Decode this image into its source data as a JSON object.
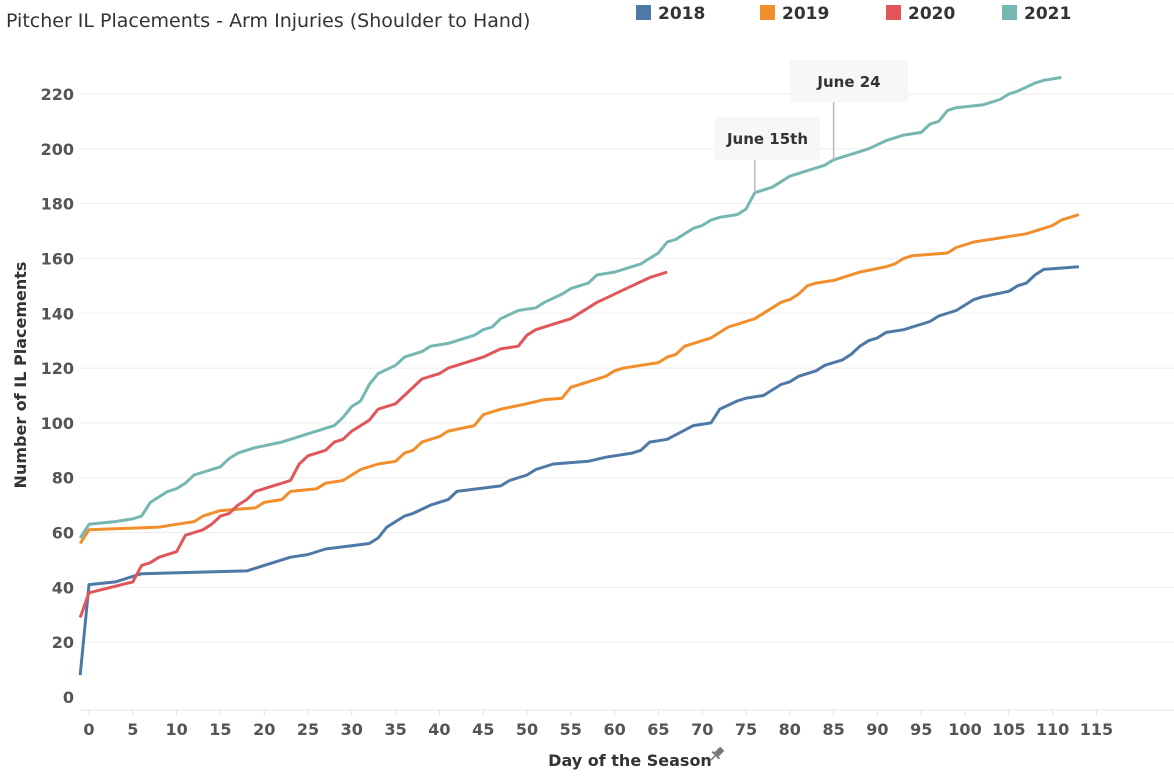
{
  "chart_data": {
    "type": "line",
    "title": "Pitcher IL Placements - Arm Injuries (Shoulder to Hand)",
    "xlabel": "Day of the Season",
    "ylabel": "Number of IL Placements",
    "xlim": [
      -1,
      124
    ],
    "ylim": [
      0,
      230
    ],
    "xticks": [
      0,
      5,
      10,
      15,
      20,
      25,
      30,
      35,
      40,
      45,
      50,
      55,
      60,
      65,
      70,
      75,
      80,
      85,
      90,
      95,
      100,
      105,
      110,
      115
    ],
    "yticks": [
      0,
      20,
      40,
      60,
      80,
      100,
      120,
      140,
      160,
      180,
      200,
      220
    ],
    "grid": "horizontal",
    "legend_position": "top",
    "series": [
      {
        "name": "2018",
        "color": "#4e79a7",
        "points": [
          [
            -1,
            8
          ],
          [
            0,
            41
          ],
          [
            3,
            42
          ],
          [
            5,
            44
          ],
          [
            6,
            45
          ],
          [
            18,
            46
          ],
          [
            23,
            51
          ],
          [
            25,
            52
          ],
          [
            27,
            54
          ],
          [
            32,
            56
          ],
          [
            33,
            58
          ],
          [
            34,
            62
          ],
          [
            36,
            66
          ],
          [
            37,
            67
          ],
          [
            39,
            70
          ],
          [
            41,
            72
          ],
          [
            42,
            75
          ],
          [
            47,
            77
          ],
          [
            48,
            79
          ],
          [
            50,
            81
          ],
          [
            51,
            83
          ],
          [
            53,
            85
          ],
          [
            57,
            86
          ],
          [
            59,
            87.5
          ],
          [
            62,
            89
          ],
          [
            63,
            90
          ],
          [
            64,
            93
          ],
          [
            66,
            94
          ],
          [
            69,
            99
          ],
          [
            71,
            100
          ],
          [
            72,
            105
          ],
          [
            74,
            108
          ],
          [
            75,
            109
          ],
          [
            77,
            110
          ],
          [
            79,
            114
          ],
          [
            80,
            115
          ],
          [
            81,
            117
          ],
          [
            83,
            119
          ],
          [
            84,
            121
          ],
          [
            86,
            123
          ],
          [
            87,
            125
          ],
          [
            88,
            128
          ],
          [
            89,
            130
          ],
          [
            90,
            131
          ],
          [
            91,
            133
          ],
          [
            93,
            134
          ],
          [
            96,
            137
          ],
          [
            97,
            139
          ],
          [
            99,
            141
          ],
          [
            101,
            145
          ],
          [
            102,
            146
          ],
          [
            105,
            148
          ],
          [
            106,
            150
          ],
          [
            107,
            151
          ],
          [
            108,
            154
          ],
          [
            109,
            156
          ],
          [
            113,
            157
          ]
        ]
      },
      {
        "name": "2019",
        "color": "#f28e2b",
        "points": [
          [
            -1,
            56
          ],
          [
            0,
            61
          ],
          [
            8,
            62
          ],
          [
            10,
            63
          ],
          [
            12,
            64
          ],
          [
            13,
            66
          ],
          [
            15,
            68
          ],
          [
            19,
            69
          ],
          [
            20,
            71
          ],
          [
            22,
            72
          ],
          [
            23,
            75
          ],
          [
            26,
            76
          ],
          [
            27,
            78
          ],
          [
            29,
            79
          ],
          [
            30,
            81
          ],
          [
            31,
            83
          ],
          [
            33,
            85
          ],
          [
            35,
            86
          ],
          [
            36,
            89
          ],
          [
            37,
            90
          ],
          [
            38,
            93
          ],
          [
            40,
            95
          ],
          [
            41,
            97
          ],
          [
            44,
            99
          ],
          [
            45,
            103
          ],
          [
            47,
            105
          ],
          [
            50,
            107
          ],
          [
            52,
            108.5
          ],
          [
            54,
            109
          ],
          [
            55,
            113
          ],
          [
            57,
            115
          ],
          [
            59,
            117
          ],
          [
            60,
            119
          ],
          [
            61,
            120
          ],
          [
            65,
            122
          ],
          [
            66,
            124
          ],
          [
            67,
            125
          ],
          [
            68,
            128
          ],
          [
            71,
            131
          ],
          [
            72,
            133
          ],
          [
            73,
            135
          ],
          [
            76,
            138
          ],
          [
            77,
            140
          ],
          [
            78,
            142
          ],
          [
            79,
            144
          ],
          [
            80,
            145
          ],
          [
            81,
            147
          ],
          [
            82,
            150
          ],
          [
            83,
            151
          ],
          [
            85,
            152
          ],
          [
            88,
            155
          ],
          [
            91,
            157
          ],
          [
            92,
            158
          ],
          [
            93,
            160
          ],
          [
            94,
            161
          ],
          [
            98,
            162
          ],
          [
            99,
            164
          ],
          [
            101,
            166
          ],
          [
            107,
            169
          ],
          [
            110,
            172
          ],
          [
            111,
            174
          ],
          [
            113,
            176
          ]
        ]
      },
      {
        "name": "2020",
        "color": "#e15759",
        "points": [
          [
            -1,
            29
          ],
          [
            0,
            38
          ],
          [
            5,
            42
          ],
          [
            6,
            48
          ],
          [
            7,
            49
          ],
          [
            8,
            51
          ],
          [
            10,
            53
          ],
          [
            11,
            59
          ],
          [
            12,
            60
          ],
          [
            13,
            61
          ],
          [
            14,
            63
          ],
          [
            15,
            66
          ],
          [
            16,
            67
          ],
          [
            17,
            70
          ],
          [
            18,
            72
          ],
          [
            19,
            75
          ],
          [
            21,
            77
          ],
          [
            23,
            79
          ],
          [
            24,
            85
          ],
          [
            25,
            88
          ],
          [
            27,
            90
          ],
          [
            28,
            93
          ],
          [
            29,
            94
          ],
          [
            30,
            97
          ],
          [
            32,
            101
          ],
          [
            33,
            105
          ],
          [
            35,
            107
          ],
          [
            36,
            110
          ],
          [
            38,
            116
          ],
          [
            40,
            118
          ],
          [
            41,
            120
          ],
          [
            43,
            122
          ],
          [
            45,
            124
          ],
          [
            47,
            127
          ],
          [
            49,
            128
          ],
          [
            50,
            132
          ],
          [
            51,
            134
          ],
          [
            55,
            138
          ],
          [
            58,
            144
          ],
          [
            62,
            150
          ],
          [
            64,
            153
          ],
          [
            66,
            155
          ]
        ]
      },
      {
        "name": "2021",
        "color": "#76b7b2",
        "points": [
          [
            -1,
            58
          ],
          [
            0,
            63
          ],
          [
            3,
            64
          ],
          [
            5,
            65
          ],
          [
            6,
            66
          ],
          [
            7,
            71
          ],
          [
            9,
            75
          ],
          [
            10,
            76
          ],
          [
            11,
            78
          ],
          [
            12,
            81
          ],
          [
            15,
            84
          ],
          [
            16,
            87
          ],
          [
            17,
            89
          ],
          [
            19,
            91
          ],
          [
            22,
            93
          ],
          [
            28,
            99
          ],
          [
            29,
            102
          ],
          [
            30,
            106
          ],
          [
            31,
            108
          ],
          [
            32,
            114
          ],
          [
            33,
            118
          ],
          [
            35,
            121
          ],
          [
            36,
            124
          ],
          [
            38,
            126
          ],
          [
            39,
            128
          ],
          [
            41,
            129
          ],
          [
            44,
            132
          ],
          [
            45,
            134
          ],
          [
            46,
            135
          ],
          [
            47,
            138
          ],
          [
            49,
            141
          ],
          [
            51,
            142
          ],
          [
            52,
            144
          ],
          [
            54,
            147
          ],
          [
            55,
            149
          ],
          [
            56,
            150
          ],
          [
            57,
            151
          ],
          [
            58,
            154
          ],
          [
            60,
            155
          ],
          [
            63,
            158
          ],
          [
            64,
            160
          ],
          [
            65,
            162
          ],
          [
            66,
            166
          ],
          [
            67,
            167
          ],
          [
            69,
            171
          ],
          [
            70,
            172
          ],
          [
            71,
            174
          ],
          [
            72,
            175
          ],
          [
            74,
            176
          ],
          [
            75,
            178
          ],
          [
            76,
            184
          ],
          [
            78,
            186
          ],
          [
            80,
            190
          ],
          [
            84,
            194
          ],
          [
            85,
            196
          ],
          [
            89,
            200
          ],
          [
            91,
            203
          ],
          [
            93,
            205
          ],
          [
            95,
            206
          ],
          [
            96,
            209
          ],
          [
            97,
            210
          ],
          [
            98,
            214
          ],
          [
            99,
            215
          ],
          [
            102,
            216
          ],
          [
            104,
            218
          ],
          [
            105,
            220
          ],
          [
            106,
            221
          ],
          [
            108,
            224
          ],
          [
            109,
            225
          ],
          [
            111,
            226
          ]
        ]
      }
    ],
    "annotations": [
      {
        "text": "June 15th",
        "x": 76,
        "y": 184
      },
      {
        "text": "June 24",
        "x": 85,
        "y": 196
      }
    ]
  }
}
